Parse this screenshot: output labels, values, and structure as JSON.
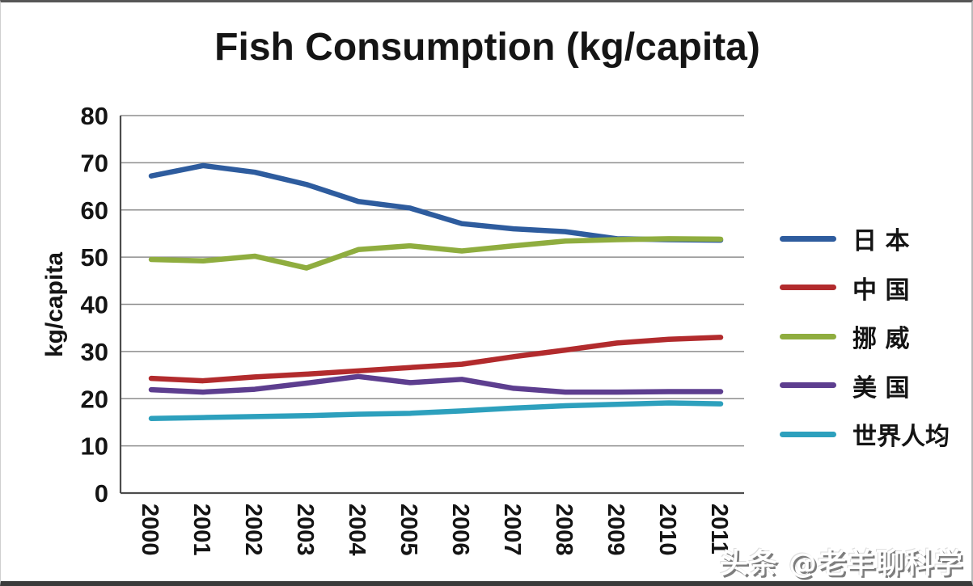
{
  "watermark": "头条 @老羊聊科学",
  "chart_data": {
    "type": "line",
    "title": "Fish Consumption (kg/capita)",
    "xlabel": "",
    "ylabel": "kg/capita",
    "categories": [
      "2000",
      "2001",
      "2002",
      "2003",
      "2004",
      "2005",
      "2006",
      "2007",
      "2008",
      "2009",
      "2010",
      "2011"
    ],
    "ylim": [
      0,
      80
    ],
    "y_ticks": [
      0,
      10,
      20,
      30,
      40,
      50,
      60,
      70,
      80
    ],
    "grid": "horizontal",
    "legend_position": "right",
    "x_tick_rotation": 90,
    "axis_color": "#4d4d4d",
    "gridline_color": "#8e8e8e",
    "series": [
      {
        "name": "日 本",
        "color": "#2e5c9e",
        "values": [
          67.2,
          69.4,
          68.0,
          65.4,
          61.8,
          60.4,
          57.1,
          56.0,
          55.4,
          53.9,
          53.7,
          53.6
        ]
      },
      {
        "name": "中 国",
        "color": "#b22b2d",
        "values": [
          24.3,
          23.8,
          24.6,
          25.2,
          25.9,
          26.6,
          27.3,
          28.9,
          30.3,
          31.8,
          32.6,
          33.0
        ]
      },
      {
        "name": "挪 威",
        "color": "#8fad3f",
        "values": [
          49.5,
          49.2,
          50.2,
          47.7,
          51.6,
          52.4,
          51.3,
          52.4,
          53.4,
          53.7,
          53.9,
          53.8
        ]
      },
      {
        "name": "美 国",
        "color": "#5d3e8f",
        "values": [
          21.9,
          21.4,
          22.0,
          23.3,
          24.7,
          23.4,
          24.1,
          22.2,
          21.4,
          21.4,
          21.5,
          21.5
        ]
      },
      {
        "name": "世界人均",
        "color": "#2da0bd",
        "values": [
          15.8,
          16.0,
          16.2,
          16.4,
          16.7,
          16.9,
          17.4,
          18.0,
          18.5,
          18.8,
          19.1,
          18.9
        ]
      }
    ]
  }
}
